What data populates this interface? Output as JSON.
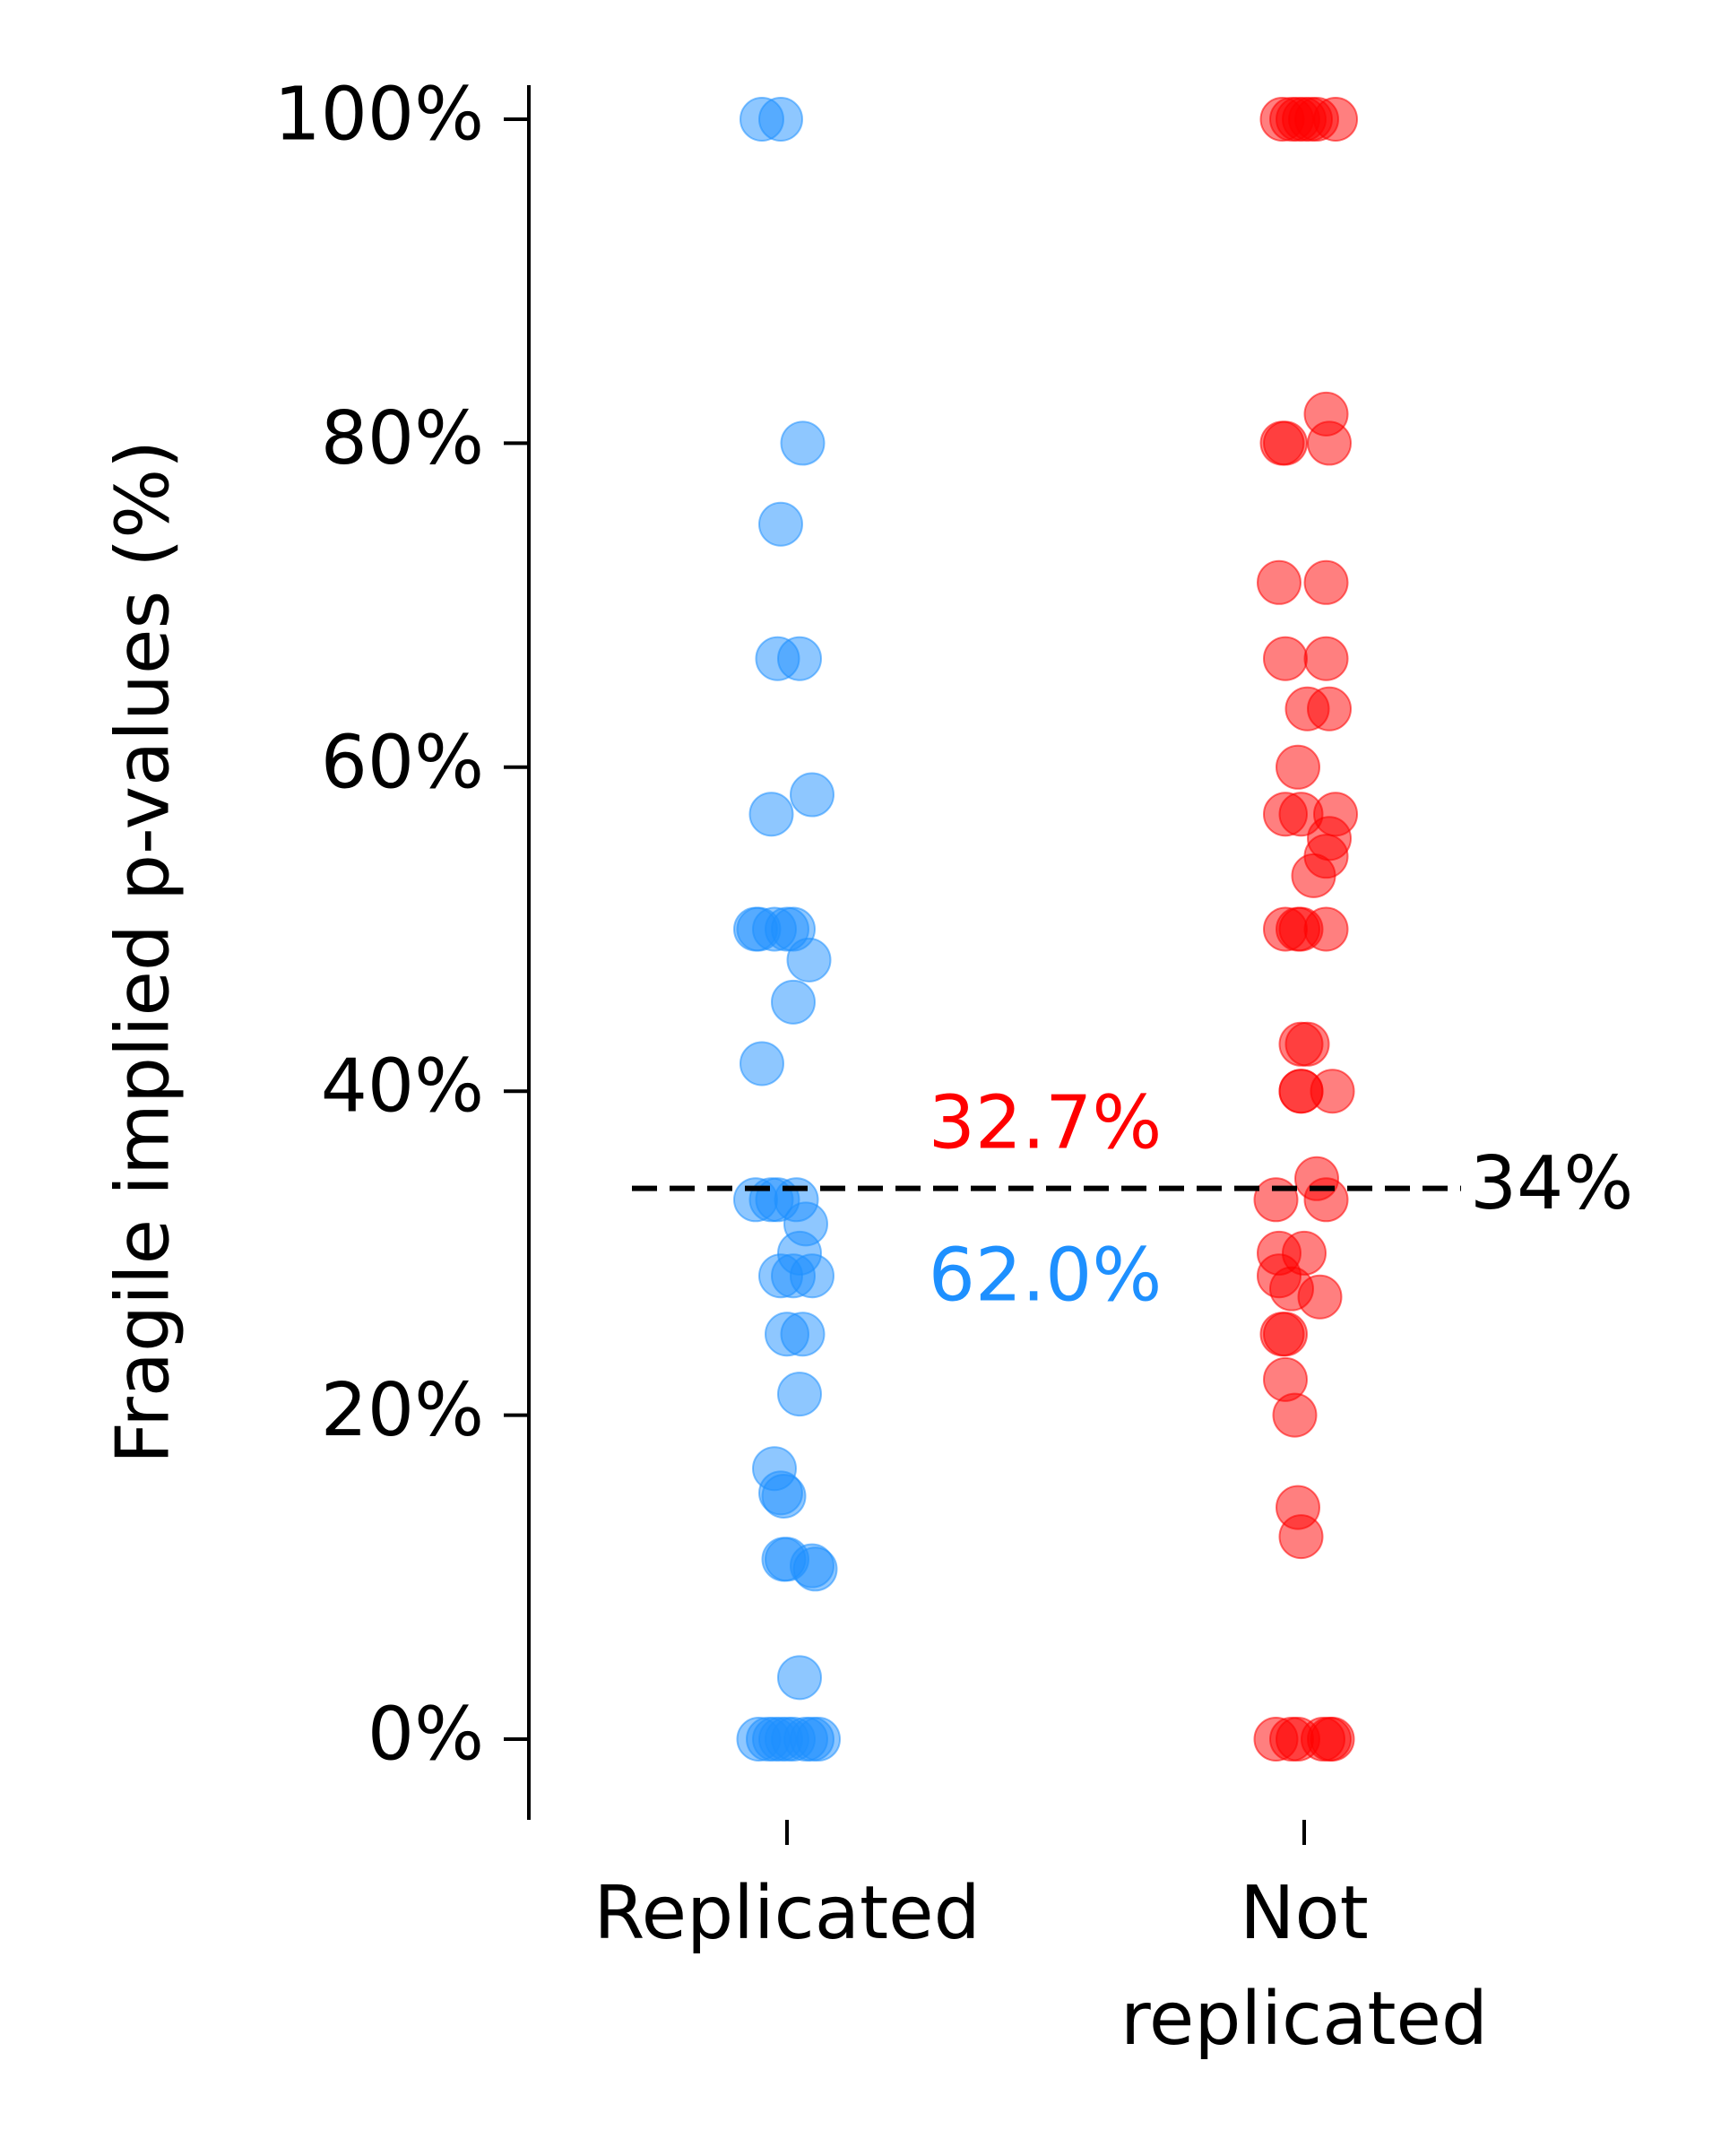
{
  "chart_data": {
    "type": "scatter",
    "title": "",
    "ylabel": "Fragile implied p-values (%)",
    "xlabel": "",
    "ylim": [
      -4,
      102
    ],
    "yticks": [
      0,
      20,
      40,
      60,
      80,
      100
    ],
    "ytick_labels": [
      "0%",
      "20%",
      "40%",
      "60%",
      "80%",
      "100%"
    ],
    "categories": [
      "Replicated",
      "Not\nreplicated"
    ],
    "grid": false,
    "legend": "none",
    "threshold": {
      "value": 34,
      "label": "34%"
    },
    "annotations": {
      "above": {
        "text": "32.7%",
        "color": "#ff0000"
      },
      "below": {
        "text": "62.0%",
        "color": "#1e90ff"
      }
    },
    "series": [
      {
        "category": "Replicated",
        "color": "#1e90ff",
        "points": [
          {
            "jitter": -0.08,
            "y": 100
          },
          {
            "jitter": -0.02,
            "y": 100
          },
          {
            "jitter": 0.05,
            "y": 80
          },
          {
            "jitter": -0.02,
            "y": 75
          },
          {
            "jitter": -0.03,
            "y": 66.7
          },
          {
            "jitter": 0.04,
            "y": 66.7
          },
          {
            "jitter": 0.08,
            "y": 58.3
          },
          {
            "jitter": -0.05,
            "y": 57.1
          },
          {
            "jitter": -0.09,
            "y": 50
          },
          {
            "jitter": -0.1,
            "y": 50
          },
          {
            "jitter": -0.04,
            "y": 50
          },
          {
            "jitter": 0.0,
            "y": 50
          },
          {
            "jitter": 0.02,
            "y": 50
          },
          {
            "jitter": 0.07,
            "y": 48.1
          },
          {
            "jitter": 0.02,
            "y": 45.5
          },
          {
            "jitter": -0.08,
            "y": 41.7
          },
          {
            "jitter": -0.1,
            "y": 33.3
          },
          {
            "jitter": -0.05,
            "y": 33.3
          },
          {
            "jitter": -0.03,
            "y": 33.3
          },
          {
            "jitter": 0.03,
            "y": 33.3
          },
          {
            "jitter": 0.06,
            "y": 31.8
          },
          {
            "jitter": 0.04,
            "y": 30
          },
          {
            "jitter": -0.02,
            "y": 28.6
          },
          {
            "jitter": 0.02,
            "y": 28.6
          },
          {
            "jitter": 0.08,
            "y": 28.6
          },
          {
            "jitter": 0.0,
            "y": 25
          },
          {
            "jitter": 0.05,
            "y": 25
          },
          {
            "jitter": 0.04,
            "y": 21.3
          },
          {
            "jitter": -0.04,
            "y": 16.7
          },
          {
            "jitter": -0.02,
            "y": 15.2
          },
          {
            "jitter": -0.01,
            "y": 15
          },
          {
            "jitter": -0.01,
            "y": 11.1
          },
          {
            "jitter": 0.0,
            "y": 11.1
          },
          {
            "jitter": 0.08,
            "y": 10.7
          },
          {
            "jitter": 0.09,
            "y": 10.5
          },
          {
            "jitter": 0.04,
            "y": 3.8
          },
          {
            "jitter": -0.09,
            "y": 0
          },
          {
            "jitter": -0.06,
            "y": 0
          },
          {
            "jitter": -0.04,
            "y": 0
          },
          {
            "jitter": -0.02,
            "y": 0
          },
          {
            "jitter": 0.0,
            "y": 0
          },
          {
            "jitter": 0.02,
            "y": 0
          },
          {
            "jitter": 0.06,
            "y": 0
          },
          {
            "jitter": 0.08,
            "y": 0
          },
          {
            "jitter": 0.1,
            "y": 0
          }
        ]
      },
      {
        "category": "Not replicated",
        "color": "#ff0000",
        "points": [
          {
            "jitter": -0.07,
            "y": 100
          },
          {
            "jitter": -0.04,
            "y": 100
          },
          {
            "jitter": -0.02,
            "y": 100
          },
          {
            "jitter": 0.0,
            "y": 100
          },
          {
            "jitter": 0.02,
            "y": 100
          },
          {
            "jitter": 0.04,
            "y": 100
          },
          {
            "jitter": 0.1,
            "y": 100
          },
          {
            "jitter": 0.07,
            "y": 81.8
          },
          {
            "jitter": -0.07,
            "y": 80
          },
          {
            "jitter": -0.06,
            "y": 80
          },
          {
            "jitter": 0.08,
            "y": 80
          },
          {
            "jitter": -0.08,
            "y": 71.4
          },
          {
            "jitter": 0.07,
            "y": 71.4
          },
          {
            "jitter": -0.06,
            "y": 66.7
          },
          {
            "jitter": 0.07,
            "y": 66.7
          },
          {
            "jitter": 0.01,
            "y": 63.6
          },
          {
            "jitter": 0.08,
            "y": 63.6
          },
          {
            "jitter": -0.02,
            "y": 60
          },
          {
            "jitter": -0.06,
            "y": 57.1
          },
          {
            "jitter": -0.01,
            "y": 57.1
          },
          {
            "jitter": 0.1,
            "y": 57.1
          },
          {
            "jitter": 0.08,
            "y": 55.6
          },
          {
            "jitter": 0.07,
            "y": 54.5
          },
          {
            "jitter": 0.03,
            "y": 53.3
          },
          {
            "jitter": -0.06,
            "y": 50
          },
          {
            "jitter": -0.02,
            "y": 50
          },
          {
            "jitter": -0.01,
            "y": 50
          },
          {
            "jitter": 0.07,
            "y": 50
          },
          {
            "jitter": -0.01,
            "y": 42.9
          },
          {
            "jitter": 0.01,
            "y": 42.9
          },
          {
            "jitter": -0.01,
            "y": 40
          },
          {
            "jitter": -0.01,
            "y": 40
          },
          {
            "jitter": 0.09,
            "y": 40
          },
          {
            "jitter": 0.04,
            "y": 34.6
          },
          {
            "jitter": -0.09,
            "y": 33.3
          },
          {
            "jitter": 0.07,
            "y": 33.3
          },
          {
            "jitter": -0.08,
            "y": 30
          },
          {
            "jitter": 0.0,
            "y": 30
          },
          {
            "jitter": -0.08,
            "y": 28.6
          },
          {
            "jitter": -0.04,
            "y": 27.8
          },
          {
            "jitter": 0.05,
            "y": 27.3
          },
          {
            "jitter": -0.06,
            "y": 25
          },
          {
            "jitter": -0.07,
            "y": 25
          },
          {
            "jitter": -0.06,
            "y": 22.2
          },
          {
            "jitter": -0.03,
            "y": 20
          },
          {
            "jitter": -0.02,
            "y": 14.3
          },
          {
            "jitter": -0.01,
            "y": 12.5
          },
          {
            "jitter": -0.09,
            "y": 0
          },
          {
            "jitter": -0.04,
            "y": 0
          },
          {
            "jitter": -0.02,
            "y": 0
          },
          {
            "jitter": 0.06,
            "y": 0
          },
          {
            "jitter": 0.08,
            "y": 0
          },
          {
            "jitter": 0.09,
            "y": 0
          }
        ]
      }
    ]
  }
}
